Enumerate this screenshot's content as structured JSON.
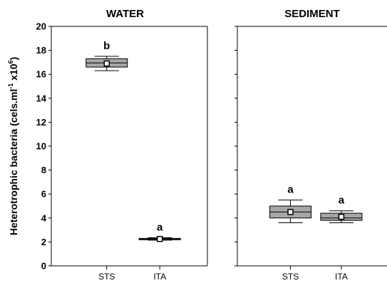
{
  "chart_data": {
    "type": "box",
    "ylabel": {
      "prefix": "Heterotrophic bacteria (cels.ml",
      "sup1": "-1",
      "middle": " x10",
      "sup2": "6",
      "suffix": ")"
    },
    "ylim": [
      0,
      20
    ],
    "yticks": [
      "0",
      "2",
      "4",
      "6",
      "8",
      "10",
      "12",
      "14",
      "16",
      "18",
      "20"
    ],
    "grid": false,
    "colors": {
      "box_fill": "#a6a6a6",
      "box_stroke": "#000000",
      "mean_marker": "#ffffff"
    },
    "panels": [
      {
        "title": "WATER",
        "categories": [
          "STS",
          "ITA"
        ],
        "boxes": [
          {
            "category": "STS",
            "min": 16.3,
            "q1": 16.6,
            "median": 16.95,
            "q3": 17.3,
            "max": 17.5,
            "mean": 16.9,
            "label": "b"
          },
          {
            "category": "ITA",
            "min": 2.15,
            "q1": 2.2,
            "median": 2.25,
            "q3": 2.3,
            "max": 2.35,
            "mean": 2.25,
            "label": "a"
          }
        ]
      },
      {
        "title": "SEDIMENT",
        "categories": [
          "STS",
          "ITA"
        ],
        "boxes": [
          {
            "category": "STS",
            "min": 3.6,
            "q1": 4.0,
            "median": 4.5,
            "q3": 5.0,
            "max": 5.5,
            "mean": 4.5,
            "label": "a"
          },
          {
            "category": "ITA",
            "min": 3.6,
            "q1": 3.8,
            "median": 4.0,
            "q3": 4.4,
            "max": 4.6,
            "mean": 4.1,
            "label": "a"
          }
        ]
      }
    ]
  }
}
